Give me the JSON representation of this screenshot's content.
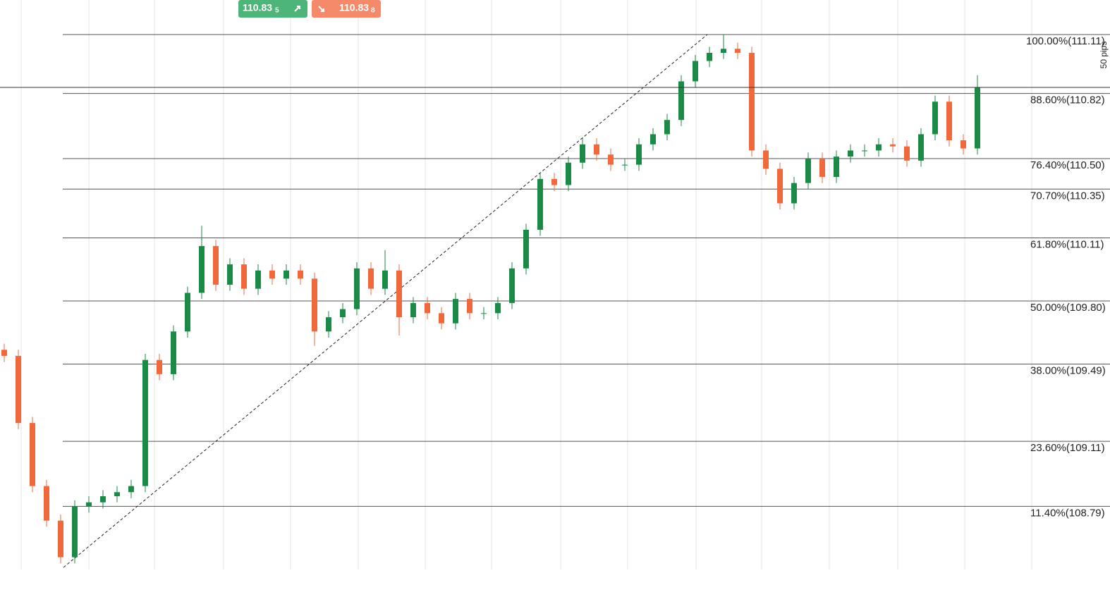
{
  "chart_data": {
    "type": "candlestick",
    "ylim": [
      108.49,
      111.11
    ],
    "up_color": "#1a8a46",
    "down_color": "#f0683c",
    "candles": [
      [
        109.56,
        109.59,
        109.5,
        109.53
      ],
      [
        109.53,
        109.56,
        109.17,
        109.2
      ],
      [
        109.2,
        109.23,
        108.86,
        108.89
      ],
      [
        108.89,
        108.92,
        108.69,
        108.72
      ],
      [
        108.72,
        108.75,
        108.51,
        108.54
      ],
      [
        108.54,
        108.82,
        108.51,
        108.79
      ],
      [
        108.79,
        108.84,
        108.76,
        108.81
      ],
      [
        108.81,
        108.87,
        108.78,
        108.84
      ],
      [
        108.84,
        108.89,
        108.81,
        108.86
      ],
      [
        108.86,
        108.92,
        108.83,
        108.89
      ],
      [
        108.89,
        109.54,
        108.86,
        109.51
      ],
      [
        109.51,
        109.54,
        109.41,
        109.44
      ],
      [
        109.44,
        109.68,
        109.41,
        109.65
      ],
      [
        109.65,
        109.87,
        109.62,
        109.84
      ],
      [
        109.84,
        110.17,
        109.81,
        110.07
      ],
      [
        110.07,
        110.1,
        109.85,
        109.88
      ],
      [
        109.88,
        110.01,
        109.85,
        109.98
      ],
      [
        109.98,
        110.01,
        109.83,
        109.86
      ],
      [
        109.86,
        109.98,
        109.83,
        109.95
      ],
      [
        109.95,
        109.98,
        109.88,
        109.91
      ],
      [
        109.91,
        109.98,
        109.88,
        109.95
      ],
      [
        109.95,
        109.98,
        109.88,
        109.91
      ],
      [
        109.91,
        109.94,
        109.58,
        109.65
      ],
      [
        109.65,
        109.75,
        109.62,
        109.72
      ],
      [
        109.72,
        109.79,
        109.69,
        109.76
      ],
      [
        109.76,
        109.99,
        109.73,
        109.96
      ],
      [
        109.96,
        109.99,
        109.83,
        109.86
      ],
      [
        109.86,
        110.05,
        109.83,
        109.95
      ],
      [
        109.95,
        109.98,
        109.63,
        109.72
      ],
      [
        109.72,
        109.82,
        109.69,
        109.79
      ],
      [
        109.79,
        109.82,
        109.71,
        109.74
      ],
      [
        109.74,
        109.77,
        109.66,
        109.69
      ],
      [
        109.69,
        109.84,
        109.66,
        109.81
      ],
      [
        109.81,
        109.84,
        109.71,
        109.74
      ],
      [
        109.74,
        109.77,
        109.71,
        109.74
      ],
      [
        109.74,
        109.82,
        109.71,
        109.79
      ],
      [
        109.79,
        109.99,
        109.76,
        109.96
      ],
      [
        109.96,
        110.18,
        109.93,
        110.15
      ],
      [
        110.15,
        110.43,
        110.12,
        110.4
      ],
      [
        110.4,
        110.43,
        110.34,
        110.37
      ],
      [
        110.37,
        110.51,
        110.34,
        110.48
      ],
      [
        110.48,
        110.6,
        110.45,
        110.57
      ],
      [
        110.57,
        110.6,
        110.49,
        110.52
      ],
      [
        110.52,
        110.55,
        110.44,
        110.47
      ],
      [
        110.47,
        110.5,
        110.44,
        110.47
      ],
      [
        110.47,
        110.6,
        110.44,
        110.57
      ],
      [
        110.57,
        110.65,
        110.54,
        110.62
      ],
      [
        110.62,
        110.72,
        110.59,
        110.69
      ],
      [
        110.69,
        110.91,
        110.66,
        110.88
      ],
      [
        110.88,
        111.01,
        110.85,
        110.98
      ],
      [
        110.98,
        111.05,
        110.95,
        111.02
      ],
      [
        111.02,
        111.11,
        110.99,
        111.04
      ],
      [
        111.04,
        111.07,
        110.99,
        111.02
      ],
      [
        111.02,
        111.05,
        110.51,
        110.54
      ],
      [
        110.54,
        110.57,
        110.42,
        110.45
      ],
      [
        110.45,
        110.48,
        110.25,
        110.28
      ],
      [
        110.28,
        110.41,
        110.25,
        110.38
      ],
      [
        110.38,
        110.53,
        110.35,
        110.5
      ],
      [
        110.5,
        110.53,
        110.38,
        110.41
      ],
      [
        110.41,
        110.54,
        110.38,
        110.51
      ],
      [
        110.51,
        110.57,
        110.48,
        110.54
      ],
      [
        110.54,
        110.57,
        110.51,
        110.54
      ],
      [
        110.54,
        110.6,
        110.51,
        110.57
      ],
      [
        110.57,
        110.6,
        110.53,
        110.56
      ],
      [
        110.56,
        110.59,
        110.46,
        110.49
      ],
      [
        110.49,
        110.65,
        110.46,
        110.62
      ],
      [
        110.62,
        110.81,
        110.59,
        110.78
      ],
      [
        110.78,
        110.81,
        110.56,
        110.59
      ],
      [
        110.59,
        110.62,
        110.52,
        110.55
      ],
      [
        110.55,
        110.91,
        110.52,
        110.85
      ]
    ],
    "fib_levels": [
      {
        "value": 111.11,
        "label": "100.00%(111.11)"
      },
      {
        "value": 110.82,
        "label": "88.60%(110.82)"
      },
      {
        "value": 110.5,
        "label": "76.40%(110.50)"
      },
      {
        "value": 110.35,
        "label": "70.70%(110.35)"
      },
      {
        "value": 110.11,
        "label": "61.80%(110.11)"
      },
      {
        "value": 109.8,
        "label": "50.00%(109.80)"
      },
      {
        "value": 109.49,
        "label": "38.00%(109.49)"
      },
      {
        "value": 109.11,
        "label": "23.60%(109.11)"
      },
      {
        "value": 108.79,
        "label": "11.40%(108.79)"
      }
    ],
    "sell_button": {
      "price": "110.83",
      "pip": "5"
    },
    "buy_button": {
      "price": "110.83",
      "pip": "8"
    },
    "pips_label": "50 pips"
  }
}
